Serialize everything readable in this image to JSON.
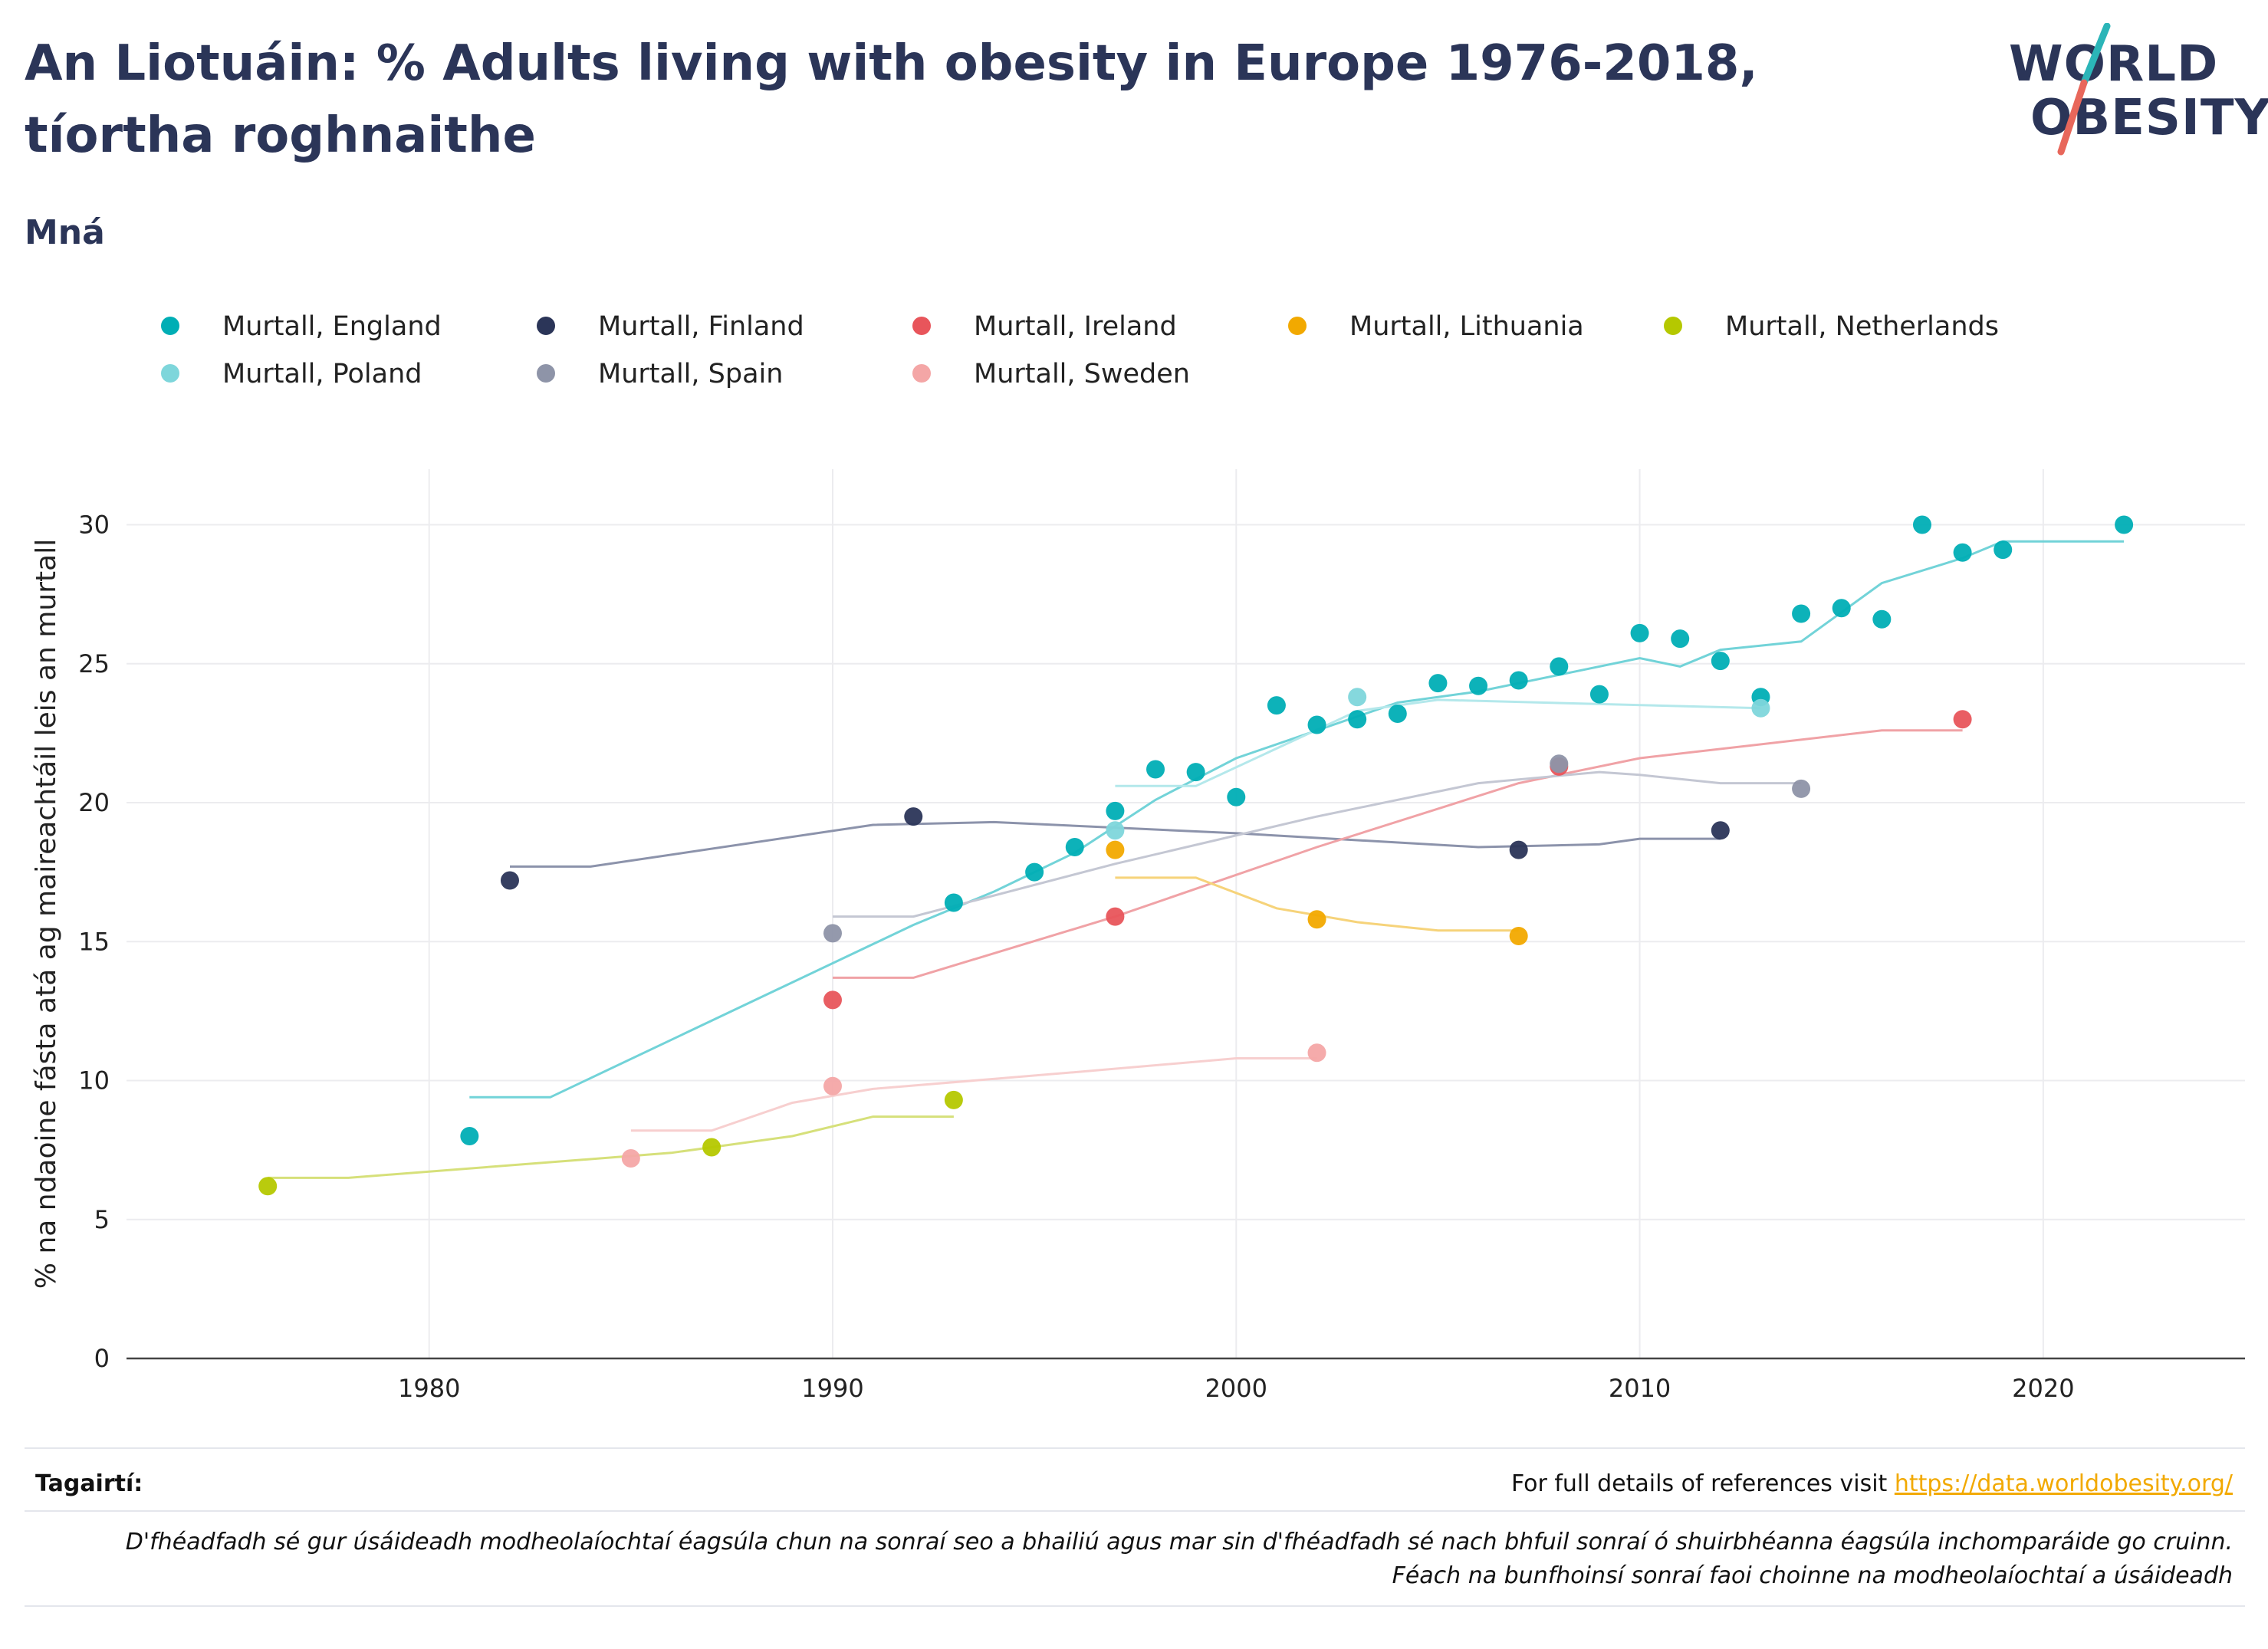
{
  "header": {
    "title": "An Liotuáin: % Adults living with obesity in Europe 1976-2018, tíortha roghnaithe",
    "subtitle": "Mná"
  },
  "logo": {
    "line1": "WORLD",
    "line2": "OBESITY",
    "colors": {
      "teal": "#2bb5b8",
      "coral": "#e8675b",
      "navy": "#2b3558"
    }
  },
  "footer": {
    "references_label": "Tagairtí:",
    "references_text": "For full details of references visit ",
    "references_link": "https://data.worldobesity.org/",
    "disclaimer_line1": "D'fhéadfadh sé gur úsáideadh modheolaíochtaí éagsúla chun na sonraí seo a bhailiú agus mar sin d'fhéadfadh sé nach bhfuil sonraí ó shuirbhéanna éagsúla inchomparáide go cruinn.",
    "disclaimer_line2": "Féach na bunfhoinsí sonraí faoi choinne na modheolaíochtaí a úsáideadh"
  },
  "chart_data": {
    "type": "scatter",
    "title": "",
    "xlabel": "",
    "ylabel": "% na ndaoine fásta atá ag maireachtáil leis an murtall",
    "xlim": [
      1972.5,
      2025
    ],
    "ylim": [
      0,
      32
    ],
    "xticks": [
      1980,
      1990,
      2000,
      2010,
      2020
    ],
    "yticks": [
      0,
      5,
      10,
      15,
      20,
      25,
      30
    ],
    "grid": true,
    "legend_position": "top",
    "series": [
      {
        "name": "Murtall, England",
        "color": "#00aeb5",
        "trend_color": "#72d3d8",
        "points": [
          [
            1981,
            8.0
          ],
          [
            1993,
            16.4
          ],
          [
            1995,
            17.5
          ],
          [
            1996,
            18.4
          ],
          [
            1997,
            19.7
          ],
          [
            1998,
            21.2
          ],
          [
            1999,
            21.1
          ],
          [
            2000,
            20.2
          ],
          [
            2001,
            23.5
          ],
          [
            2002,
            22.8
          ],
          [
            2003,
            23.0
          ],
          [
            2004,
            23.2
          ],
          [
            2005,
            24.3
          ],
          [
            2006,
            24.2
          ],
          [
            2007,
            24.4
          ],
          [
            2008,
            24.9
          ],
          [
            2009,
            23.9
          ],
          [
            2010,
            26.1
          ],
          [
            2011,
            25.9
          ],
          [
            2012,
            25.1
          ],
          [
            2013,
            23.8
          ],
          [
            2014,
            26.8
          ],
          [
            2015,
            27.0
          ],
          [
            2016,
            26.6
          ],
          [
            2017,
            30.0
          ],
          [
            2018,
            29.0
          ],
          [
            2019,
            29.1
          ],
          [
            2022,
            30.0
          ]
        ],
        "trend": [
          [
            1981,
            9.4
          ],
          [
            1983,
            9.4
          ],
          [
            1992,
            15.6
          ],
          [
            1994,
            16.8
          ],
          [
            1996,
            18.2
          ],
          [
            1998,
            20.1
          ],
          [
            2000,
            21.6
          ],
          [
            2002,
            22.6
          ],
          [
            2004,
            23.6
          ],
          [
            2006,
            24.0
          ],
          [
            2008,
            24.6
          ],
          [
            2010,
            25.2
          ],
          [
            2011,
            24.9
          ],
          [
            2012,
            25.5
          ],
          [
            2014,
            25.8
          ],
          [
            2016,
            27.9
          ],
          [
            2018,
            28.8
          ],
          [
            2019,
            29.4
          ],
          [
            2022,
            29.4
          ]
        ]
      },
      {
        "name": "Murtall, Finland",
        "color": "#2b3558",
        "trend_color": "#8c93ab",
        "points": [
          [
            1982,
            17.2
          ],
          [
            1992,
            19.5
          ],
          [
            2007,
            18.3
          ],
          [
            2012,
            19.0
          ]
        ],
        "trend": [
          [
            1982,
            17.7
          ],
          [
            1984,
            17.7
          ],
          [
            1991,
            19.2
          ],
          [
            1994,
            19.3
          ],
          [
            2000,
            18.9
          ],
          [
            2006,
            18.4
          ],
          [
            2009,
            18.5
          ],
          [
            2010,
            18.7
          ],
          [
            2012,
            18.7
          ]
        ]
      },
      {
        "name": "Murtall, Ireland",
        "color": "#e8555b",
        "trend_color": "#f0a2a6",
        "points": [
          [
            1990,
            12.9
          ],
          [
            1997,
            15.9
          ],
          [
            2008,
            21.3
          ],
          [
            2018,
            23.0
          ]
        ],
        "trend": [
          [
            1990,
            13.7
          ],
          [
            1992,
            13.7
          ],
          [
            1997,
            15.9
          ],
          [
            2002,
            18.4
          ],
          [
            2007,
            20.7
          ],
          [
            2010,
            21.6
          ],
          [
            2016,
            22.6
          ],
          [
            2018,
            22.6
          ]
        ]
      },
      {
        "name": "Murtall, Lithuania",
        "color": "#f2a900",
        "trend_color": "#f6d37a",
        "points": [
          [
            1997,
            18.3
          ],
          [
            2002,
            15.8
          ],
          [
            2007,
            15.2
          ]
        ],
        "trend": [
          [
            1997,
            17.3
          ],
          [
            1999,
            17.3
          ],
          [
            2001,
            16.2
          ],
          [
            2003,
            15.7
          ],
          [
            2005,
            15.4
          ],
          [
            2007,
            15.4
          ]
        ]
      },
      {
        "name": "Murtall, Netherlands",
        "color": "#b5c800",
        "trend_color": "#d6e07a",
        "points": [
          [
            1976,
            6.2
          ],
          [
            1987,
            7.6
          ],
          [
            1993,
            9.3
          ]
        ],
        "trend": [
          [
            1976,
            6.5
          ],
          [
            1978,
            6.5
          ],
          [
            1986,
            7.4
          ],
          [
            1989,
            8.0
          ],
          [
            1991,
            8.7
          ],
          [
            1993,
            8.7
          ]
        ]
      },
      {
        "name": "Murtall, Poland",
        "color": "#7ed6db",
        "trend_color": "#b4e8eb",
        "points": [
          [
            1997,
            19.0
          ],
          [
            2003,
            23.8
          ],
          [
            2013,
            23.4
          ]
        ],
        "trend": [
          [
            1997,
            20.6
          ],
          [
            1999,
            20.6
          ],
          [
            2003,
            23.3
          ],
          [
            2005,
            23.7
          ],
          [
            2013,
            23.4
          ]
        ]
      },
      {
        "name": "Murtall, Spain",
        "color": "#8e94a8",
        "trend_color": "#c4c7d3",
        "points": [
          [
            1990,
            15.3
          ],
          [
            2008,
            21.4
          ],
          [
            2014,
            20.5
          ]
        ],
        "trend": [
          [
            1990,
            15.9
          ],
          [
            1992,
            15.9
          ],
          [
            1997,
            17.8
          ],
          [
            2002,
            19.5
          ],
          [
            2006,
            20.7
          ],
          [
            2009,
            21.1
          ],
          [
            2010,
            21.0
          ],
          [
            2012,
            20.7
          ],
          [
            2014,
            20.7
          ]
        ]
      },
      {
        "name": "Murtall, Sweden",
        "color": "#f4a6a6",
        "trend_color": "#f7cfcf",
        "points": [
          [
            1985,
            7.2
          ],
          [
            1990,
            9.8
          ],
          [
            2002,
            11.0
          ]
        ],
        "trend": [
          [
            1985,
            8.2
          ],
          [
            1987,
            8.2
          ],
          [
            1989,
            9.2
          ],
          [
            1991,
            9.7
          ],
          [
            1996,
            10.3
          ],
          [
            2000,
            10.8
          ],
          [
            2002,
            10.8
          ]
        ]
      }
    ]
  }
}
